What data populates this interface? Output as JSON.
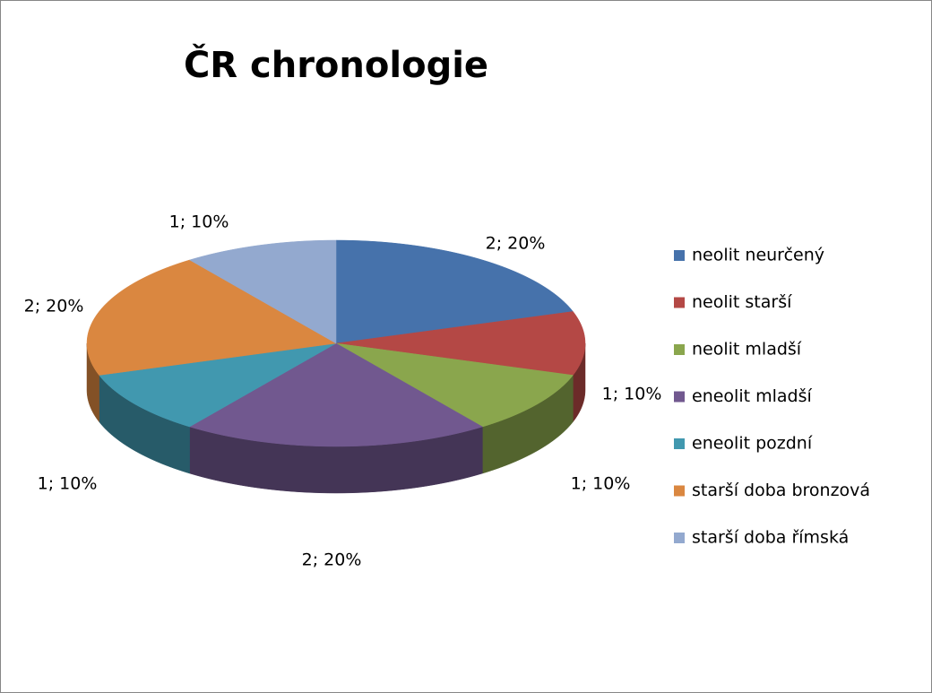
{
  "chart_data": {
    "type": "pie3d",
    "title": "ČR chronologie",
    "categories": [
      "neolit neurčený",
      "neolit starší",
      "neolit mladší",
      "eneolit mladší",
      "eneolit pozdní",
      "starší doba bronzová",
      "starší doba římská"
    ],
    "values": [
      2,
      1,
      1,
      2,
      1,
      2,
      1
    ],
    "value_labels": [
      "2; 20%",
      "1; 10%",
      "1; 10%",
      "2; 20%",
      "1; 10%",
      "2; 20%",
      "1; 10%"
    ],
    "colors": [
      "#4672ab",
      "#b44845",
      "#8aa64d",
      "#71588f",
      "#4198af",
      "#da8740",
      "#93a9cf"
    ],
    "legend": "right"
  }
}
